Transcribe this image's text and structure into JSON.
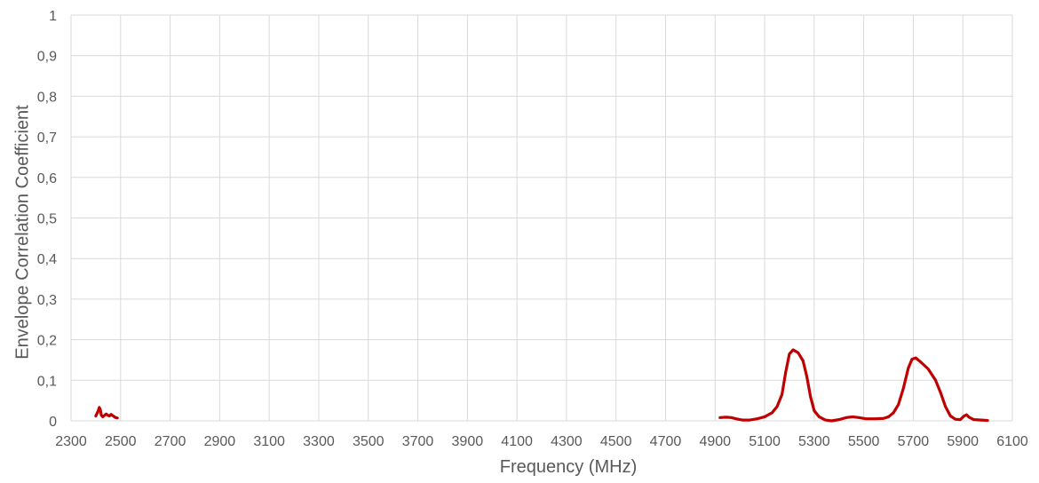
{
  "chart_data": {
    "type": "line",
    "title": "",
    "xlabel": "Frequency (MHz)",
    "ylabel": "Envelope Correlation Coefficient",
    "xlim": [
      2300,
      6100
    ],
    "ylim": [
      0,
      1
    ],
    "x_ticks": [
      "2300",
      "2500",
      "2700",
      "2900",
      "3100",
      "3300",
      "3500",
      "3700",
      "3900",
      "4100",
      "4300",
      "4500",
      "4700",
      "4900",
      "5100",
      "5300",
      "5500",
      "5700",
      "5900",
      "6100"
    ],
    "y_ticks": [
      "0",
      "0,1",
      "0,2",
      "0,3",
      "0,4",
      "0,5",
      "0,6",
      "0,7",
      "0,8",
      "0,9",
      "1"
    ],
    "grid": true,
    "legend": "none",
    "series_color": "#C00000",
    "series": [
      {
        "segments": [
          [
            [
              2400,
              0.012
            ],
            [
              2410,
              0.025
            ],
            [
              2414,
              0.033
            ],
            [
              2418,
              0.028
            ],
            [
              2422,
              0.014
            ],
            [
              2428,
              0.01
            ],
            [
              2436,
              0.014
            ],
            [
              2442,
              0.017
            ],
            [
              2448,
              0.014
            ],
            [
              2455,
              0.012
            ],
            [
              2462,
              0.016
            ],
            [
              2470,
              0.012
            ],
            [
              2480,
              0.008
            ],
            [
              2487,
              0.007
            ]
          ],
          [
            [
              4920,
              0.008
            ],
            [
              4945,
              0.009
            ],
            [
              4965,
              0.008
            ],
            [
              4985,
              0.005
            ],
            [
              5010,
              0.002
            ],
            [
              5040,
              0.002
            ],
            [
              5070,
              0.005
            ],
            [
              5100,
              0.01
            ],
            [
              5130,
              0.02
            ],
            [
              5150,
              0.035
            ],
            [
              5170,
              0.065
            ],
            [
              5185,
              0.12
            ],
            [
              5200,
              0.165
            ],
            [
              5215,
              0.175
            ],
            [
              5235,
              0.168
            ],
            [
              5255,
              0.148
            ],
            [
              5270,
              0.11
            ],
            [
              5285,
              0.06
            ],
            [
              5300,
              0.025
            ],
            [
              5320,
              0.01
            ],
            [
              5345,
              0.002
            ],
            [
              5370,
              0.0
            ],
            [
              5400,
              0.003
            ],
            [
              5430,
              0.008
            ],
            [
              5455,
              0.01
            ],
            [
              5480,
              0.008
            ],
            [
              5510,
              0.005
            ],
            [
              5545,
              0.005
            ],
            [
              5580,
              0.006
            ],
            [
              5600,
              0.01
            ],
            [
              5620,
              0.02
            ],
            [
              5640,
              0.04
            ],
            [
              5660,
              0.08
            ],
            [
              5680,
              0.13
            ],
            [
              5695,
              0.152
            ],
            [
              5710,
              0.155
            ],
            [
              5730,
              0.145
            ],
            [
              5760,
              0.128
            ],
            [
              5790,
              0.1
            ],
            [
              5810,
              0.07
            ],
            [
              5830,
              0.035
            ],
            [
              5850,
              0.012
            ],
            [
              5870,
              0.004
            ],
            [
              5890,
              0.003
            ],
            [
              5905,
              0.012
            ],
            [
              5915,
              0.015
            ],
            [
              5925,
              0.009
            ],
            [
              5945,
              0.003
            ],
            [
              5975,
              0.002
            ],
            [
              6000,
              0.001
            ]
          ]
        ]
      }
    ]
  }
}
